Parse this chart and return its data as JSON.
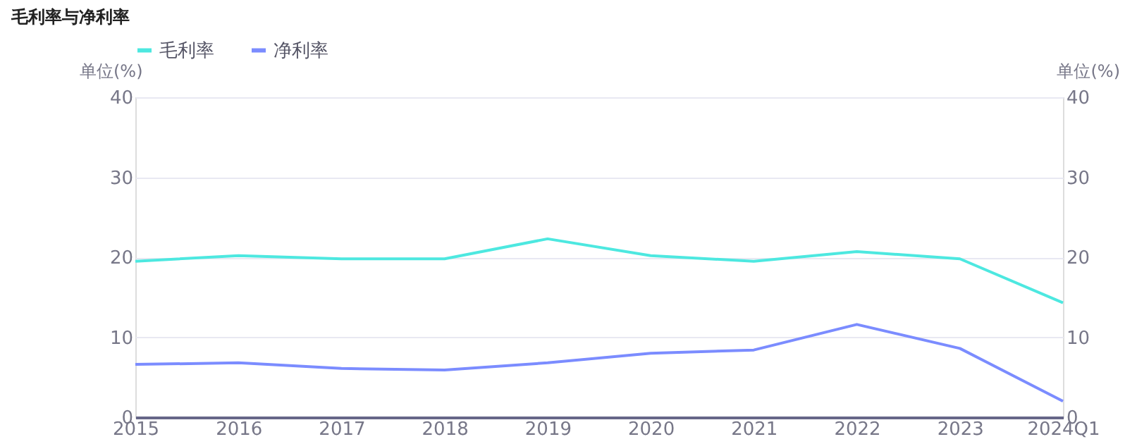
{
  "chart_data": {
    "type": "line",
    "title": "毛利率与净利率",
    "categories": [
      "2015",
      "2016",
      "2017",
      "2018",
      "2019",
      "2020",
      "2021",
      "2022",
      "2023",
      "2024Q1"
    ],
    "series": [
      {
        "name": "毛利率",
        "color": "#4de8e0",
        "values": [
          19.5,
          20.2,
          19.8,
          19.8,
          22.3,
          20.2,
          19.5,
          20.7,
          19.8,
          14.3
        ]
      },
      {
        "name": "净利率",
        "color": "#7b8cff",
        "values": [
          6.6,
          6.8,
          6.1,
          5.9,
          6.8,
          8.0,
          8.4,
          11.6,
          8.6,
          2.0
        ]
      }
    ],
    "ylabel": "单位(%)",
    "y2label": "单位(%)",
    "ylim": [
      0,
      40
    ],
    "yticks": [
      0,
      10,
      20,
      30,
      40
    ],
    "y2lim": [
      0,
      40
    ],
    "y2ticks": [
      0,
      10,
      20,
      30,
      40
    ],
    "grid": "y",
    "legend": "top left",
    "marker": "none",
    "line_style": "solid"
  }
}
